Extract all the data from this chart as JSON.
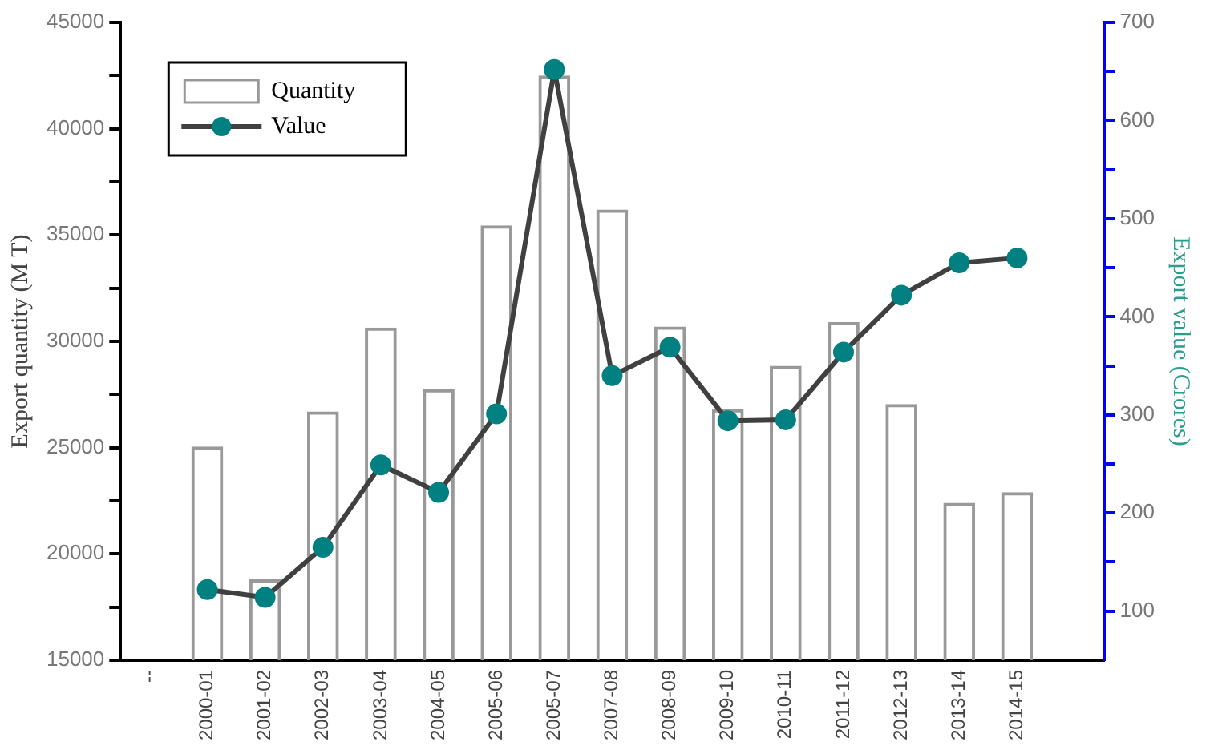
{
  "chart_data": {
    "type": "bar",
    "categories": [
      "--",
      "2000-01",
      "2001-02",
      "2002-03",
      "2003-04",
      "2004-05",
      "2005-06",
      "2005-07",
      "2007-08",
      "2008-09",
      "2009-10",
      "2010-11",
      "2011-12",
      "2012-13",
      "2013-14",
      "2014-15",
      null
    ],
    "series": [
      {
        "name": "Quantity",
        "color": "#999999",
        "values": [
          null,
          25050,
          18800,
          26700,
          30650,
          27750,
          35450,
          42500,
          36200,
          30700,
          26800,
          28850,
          30900,
          27050,
          22400,
          22900,
          null
        ]
      },
      {
        "name": "Value",
        "type": "line",
        "axis": "y2",
        "color": "#008080",
        "marker": "circle",
        "line_style": "solid",
        "values": [
          null,
          122,
          114,
          165,
          249,
          221,
          301,
          652,
          340,
          369,
          294,
          295,
          364,
          422,
          455,
          460,
          null
        ]
      }
    ],
    "ylabel": "Export quantity (M T)",
    "y2label": "Export value (Crores)",
    "ylim": [
      15000,
      45000
    ],
    "yticks": [
      15000,
      {
        "value": 17500,
        "label": null
      },
      20000,
      {
        "value": 22500,
        "label": null
      },
      25000,
      {
        "value": 27500,
        "label": null
      },
      30000,
      {
        "value": 32500,
        "label": null
      },
      35000,
      {
        "value": 37500,
        "label": null
      },
      40000,
      {
        "value": 42500,
        "label": null
      },
      45000
    ],
    "y2lim": [
      50,
      700
    ],
    "y2ticks": [
      100,
      {
        "value": 150,
        "label": null
      },
      200,
      {
        "value": 250,
        "label": null
      },
      300,
      {
        "value": 350,
        "label": null
      },
      400,
      {
        "value": 450,
        "label": null
      },
      500,
      {
        "value": 550,
        "label": null
      },
      600,
      {
        "value": 650,
        "label": null
      },
      700
    ],
    "grid": false,
    "legend": "top left"
  }
}
